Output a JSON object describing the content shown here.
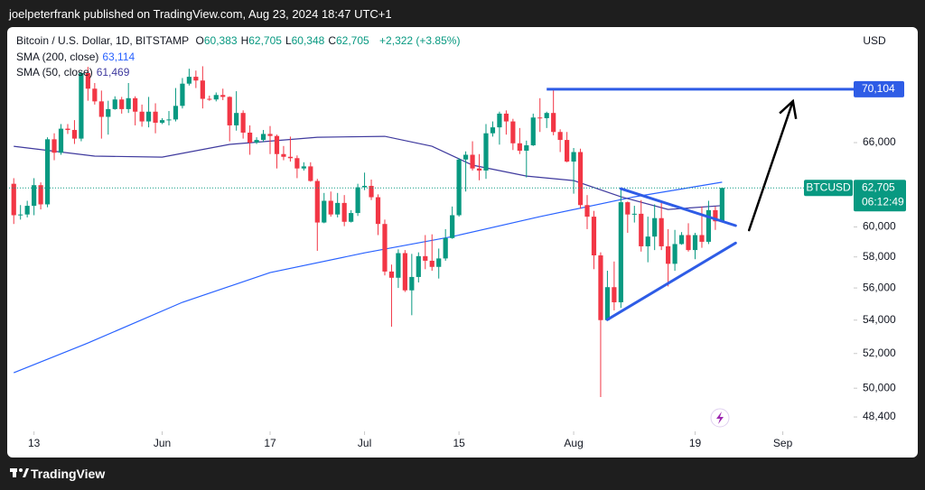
{
  "header": {
    "publisher": "joelpeterfrank published on TradingView.com, Aug 23, 2024 18:47 UTC+1",
    "brand": "TradingView"
  },
  "chart_data": {
    "type": "candlestick",
    "title": "Bitcoin / U.S. Dollar, 1D, BITSTAMP",
    "ohlc_legend": [
      {
        "key": "O",
        "label": "60,383"
      },
      {
        "key": "H",
        "label": "62,705"
      },
      {
        "key": "L",
        "label": "60,348"
      },
      {
        "key": "C",
        "label": "62,705"
      }
    ],
    "change": "+2,322 (+3.85%)",
    "currency": "USD",
    "symbol": "BTCUSD",
    "last_price_label": "62,705",
    "countdown": "06:12:49",
    "up_color": "#089981",
    "down_color": "#f23645",
    "log_scale": true,
    "open": [
      63000,
      60800,
      60850,
      61450,
      62900,
      61550,
      66250,
      65250,
      67050,
      66950,
      66300,
      71400,
      70150,
      69150,
      67950,
      68550,
      69300,
      68550,
      69400,
      68350,
      67600,
      68350,
      67500,
      67700,
      67750,
      68800,
      70550,
      71100,
      70800,
      69350,
      69300,
      69650,
      69500,
      67300,
      68250,
      66750,
      66000,
      66200,
      66650,
      66500,
      65150,
      64950,
      64850,
      64100,
      64250,
      63200,
      60300,
      61800,
      60850,
      61650,
      60350,
      60950,
      62750,
      62850,
      62050,
      60200,
      57050,
      56650,
      58250,
      55850,
      56700,
      58050,
      57750,
      57350,
      57900,
      59250,
      60800,
      64750,
      65100,
      64100,
      63950,
      66700,
      67150,
      68200,
      67600,
      65950,
      65400,
      65800,
      67900,
      67850,
      68250,
      66800,
      66200,
      64600,
      65300,
      61500,
      60700,
      58100,
      54000,
      56050,
      55100,
      61700,
      60850,
      60900,
      58700,
      59350,
      60600,
      58700,
      57550,
      58850,
      59450,
      58450,
      59450,
      59000,
      61150,
      60383
    ],
    "high": [
      63400,
      61500,
      61800,
      63400,
      63100,
      66400,
      66700,
      67400,
      67400,
      67700,
      71500,
      71900,
      70600,
      70000,
      69200,
      69550,
      69500,
      70600,
      69550,
      68900,
      69500,
      69000,
      67850,
      68400,
      70200,
      71000,
      71750,
      71600,
      71950,
      69600,
      69850,
      70150,
      69550,
      69950,
      68450,
      67300,
      66400,
      66950,
      67250,
      66600,
      65750,
      66450,
      65050,
      64550,
      64550,
      63350,
      62350,
      62450,
      62350,
      62200,
      61150,
      63000,
      63800,
      63300,
      62250,
      60500,
      57500,
      58500,
      58450,
      58200,
      58300,
      59450,
      59500,
      58550,
      59850,
      61400,
      64850,
      65350,
      66100,
      65150,
      67400,
      67600,
      68350,
      68450,
      67800,
      67100,
      66150,
      68200,
      69400,
      68350,
      70050,
      67000,
      66800,
      65600,
      65550,
      62200,
      61100,
      58300,
      57100,
      57700,
      62700,
      61750,
      61450,
      61850,
      60700,
      61550,
      61800,
      59850,
      59800,
      59650,
      60250,
      59600,
      61400,
      61800,
      61400,
      62705
    ],
    "low": [
      60200,
      60500,
      60650,
      60800,
      61200,
      61350,
      64700,
      65100,
      66650,
      65900,
      66100,
      69200,
      68900,
      66300,
      66600,
      68500,
      68200,
      68250,
      67300,
      67200,
      67150,
      66700,
      67400,
      67300,
      67600,
      68600,
      70400,
      70200,
      68600,
      69200,
      69150,
      69250,
      66100,
      66900,
      66300,
      65100,
      65900,
      66050,
      65150,
      64100,
      64700,
      64600,
      63400,
      63950,
      63150,
      58400,
      60250,
      60700,
      60650,
      60050,
      60300,
      60750,
      62550,
      61850,
      59450,
      56800,
      53600,
      56000,
      55750,
      54300,
      56350,
      57200,
      57100,
      56600,
      57750,
      59200,
      60700,
      62450,
      63950,
      63250,
      63350,
      66450,
      65850,
      66600,
      65450,
      65150,
      63450,
      65750,
      66800,
      67100,
      66550,
      65300,
      64550,
      62300,
      61250,
      59850,
      57200,
      49500,
      53950,
      54600,
      54750,
      59600,
      60300,
      58350,
      57650,
      58450,
      58450,
      56100,
      57100,
      58800,
      58350,
      57850,
      58600,
      58850,
      59800,
      60348
    ],
    "close": [
      60800,
      60850,
      61450,
      62900,
      61550,
      66250,
      65250,
      67050,
      66950,
      66300,
      71400,
      70150,
      69150,
      67950,
      68550,
      69300,
      68550,
      69400,
      68350,
      67600,
      68350,
      67500,
      67700,
      67750,
      68800,
      70550,
      71100,
      70800,
      69350,
      69300,
      69650,
      69500,
      67300,
      68250,
      66750,
      66000,
      66200,
      66650,
      66500,
      65150,
      64950,
      64850,
      64100,
      64250,
      63200,
      60300,
      61800,
      60850,
      61650,
      60350,
      60950,
      62750,
      62850,
      62050,
      60200,
      57050,
      56650,
      58250,
      55850,
      56700,
      58050,
      57750,
      57350,
      57900,
      59250,
      60800,
      64750,
      65100,
      64100,
      63950,
      66700,
      67150,
      68200,
      67600,
      65950,
      65400,
      65800,
      67900,
      67850,
      68250,
      66800,
      66200,
      64600,
      65300,
      61500,
      60700,
      58100,
      54000,
      56050,
      55100,
      61700,
      60850,
      60900,
      58700,
      59350,
      60600,
      58700,
      57550,
      58850,
      59450,
      58450,
      59450,
      59000,
      61150,
      60383,
      62705
    ],
    "xlim": [
      -0.7,
      124.5
    ],
    "xticks": [
      {
        "value": 3,
        "label": "13"
      },
      {
        "value": 22,
        "label": "Jun"
      },
      {
        "value": 38,
        "label": "17"
      },
      {
        "value": 52,
        "label": "Jul"
      },
      {
        "value": 66,
        "label": "15"
      },
      {
        "value": 83,
        "label": "Aug"
      },
      {
        "value": 101,
        "label": "19"
      },
      {
        "value": 114,
        "label": "Sep"
      }
    ],
    "ylim": [
      47620,
      75210
    ],
    "yticks": [
      {
        "value": 66000,
        "label": "66,000"
      },
      {
        "value": 60000,
        "label": "60,000"
      },
      {
        "value": 58000,
        "label": "58,000"
      },
      {
        "value": 56000,
        "label": "56,000"
      },
      {
        "value": 54000,
        "label": "54,000"
      },
      {
        "value": 52000,
        "label": "52,000"
      },
      {
        "value": 50000,
        "label": "50,000"
      },
      {
        "value": 48400,
        "label": "48,400"
      }
    ],
    "overlays": [
      {
        "name": "SMA (200, close)",
        "color": "#2962ff",
        "last_value_label": "63,114",
        "x": [
          0,
          11,
          25,
          38,
          52,
          65,
          78,
          92,
          105
        ],
        "values": [
          50880,
          52620,
          55100,
          56980,
          58270,
          59350,
          60700,
          62080,
          63114
        ]
      },
      {
        "name": "SMA (50, close)",
        "color": "#3f3a9e",
        "last_value_label": "61,469",
        "x": [
          0,
          12,
          22,
          32,
          45,
          55,
          62,
          68,
          76,
          83,
          90,
          97,
          105
        ],
        "values": [
          65730,
          65000,
          64930,
          65870,
          66400,
          66470,
          65730,
          64340,
          63550,
          63230,
          62080,
          61200,
          61469
        ]
      }
    ],
    "drawings": [
      {
        "kind": "horizontal-ray",
        "x": 79,
        "value": 70104,
        "label": "70,104",
        "color": "#2e5ce6"
      },
      {
        "kind": "trend-line",
        "x": [
          90,
          107
        ],
        "values": [
          62650,
          60090
        ],
        "color": "#2e5ce6"
      },
      {
        "kind": "trend-line",
        "x": [
          88,
          107
        ],
        "values": [
          54030,
          58920
        ],
        "color": "#2e5ce6"
      },
      {
        "kind": "arrow",
        "x": [
          109,
          115.5
        ],
        "values": [
          59780,
          69170
        ],
        "color": "#000000"
      }
    ]
  }
}
